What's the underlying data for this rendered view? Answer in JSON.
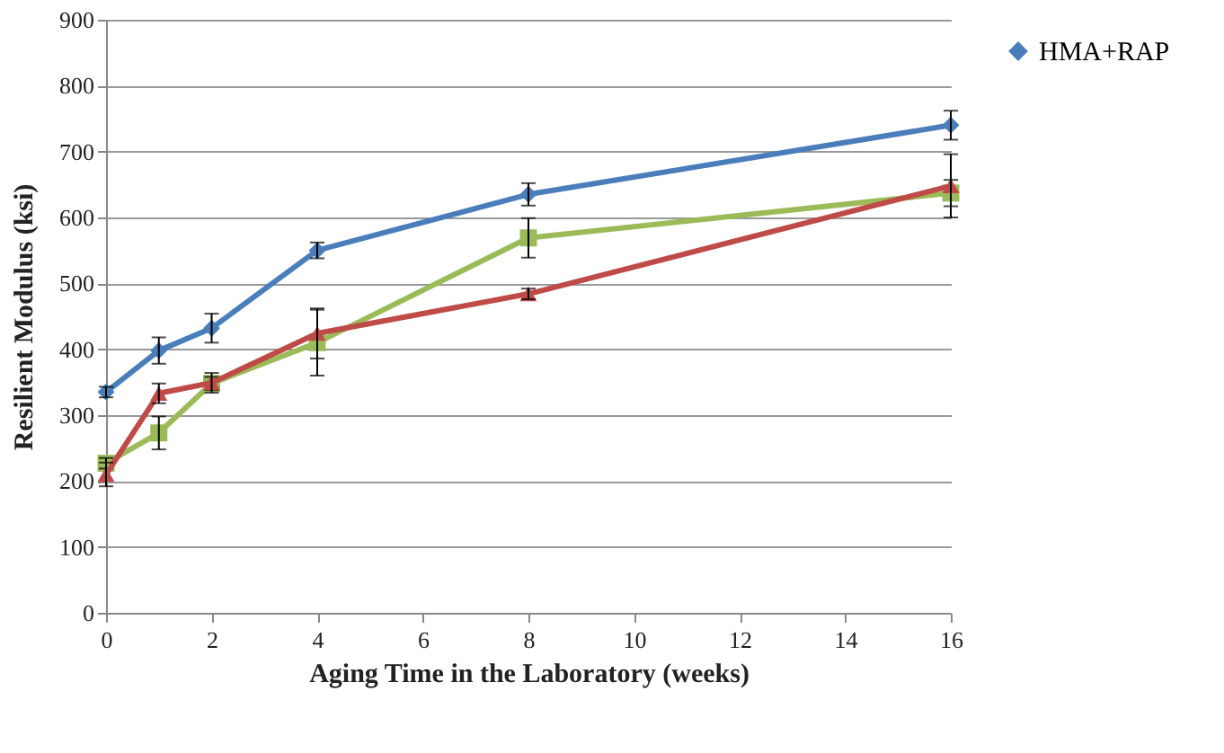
{
  "chart_data": {
    "type": "line",
    "xlabel": "Aging Time in the Laboratory (weeks)",
    "ylabel": "Resilient Modulus (ksi)",
    "x": [
      0,
      1,
      2,
      4,
      8,
      16
    ],
    "series": [
      {
        "name": "HMA+RAP",
        "color": "#4a7ebb",
        "marker": "diamond",
        "values": [
          335,
          398,
          432,
          550,
          635,
          740
        ],
        "errors": [
          8,
          20,
          22,
          12,
          17,
          22
        ]
      },
      {
        "color": "#9bbb59",
        "marker": "square",
        "values": [
          227,
          273,
          348,
          410,
          569,
          637
        ],
        "errors": [
          8,
          25,
          10,
          50,
          30,
          20
        ]
      },
      {
        "color": "#be4b48",
        "marker": "triangle",
        "values": [
          210,
          333,
          349,
          424,
          484,
          648
        ],
        "errors": [
          18,
          15,
          15,
          38,
          8,
          48
        ]
      }
    ],
    "xlim": [
      0,
      16
    ],
    "xticks": [
      0,
      2,
      4,
      6,
      8,
      10,
      12,
      14,
      16
    ],
    "ylim": [
      0,
      900
    ],
    "yticks": [
      0,
      100,
      200,
      300,
      400,
      500,
      600,
      700,
      800,
      900
    ],
    "grid": "y",
    "legend": "right",
    "line_style": "solid"
  }
}
